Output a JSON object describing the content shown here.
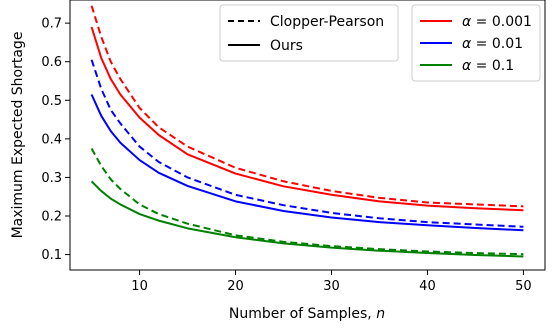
{
  "chart_data": {
    "type": "line",
    "xlabel": "Number of Samples, ",
    "xlabel_var": "n",
    "ylabel": "Maximum Expected Shortage",
    "xlim": [
      2.75,
      52.25
    ],
    "ylim": [
      0.06,
      0.76
    ],
    "xticks": [
      10,
      20,
      30,
      40,
      50
    ],
    "yticks": [
      0.1,
      0.2,
      0.3,
      0.4,
      0.5,
      0.6,
      0.7
    ],
    "grid": false,
    "x": [
      5,
      6,
      7,
      8,
      10,
      12,
      15,
      20,
      25,
      30,
      35,
      40,
      45,
      50
    ],
    "series": [
      {
        "method": "Clopper-Pearson",
        "alpha": "0.001",
        "color": "#ff0000",
        "dash": "dashed",
        "values": [
          0.745,
          0.665,
          0.6,
          0.555,
          0.48,
          0.43,
          0.38,
          0.325,
          0.29,
          0.265,
          0.247,
          0.235,
          0.23,
          0.225
        ]
      },
      {
        "method": "Ours",
        "alpha": "0.001",
        "color": "#ff0000",
        "dash": "solid",
        "values": [
          0.69,
          0.61,
          0.555,
          0.515,
          0.455,
          0.41,
          0.36,
          0.31,
          0.277,
          0.255,
          0.238,
          0.227,
          0.22,
          0.215
        ]
      },
      {
        "method": "Clopper-Pearson",
        "alpha": "0.01",
        "color": "#0000ff",
        "dash": "dashed",
        "values": [
          0.605,
          0.53,
          0.475,
          0.44,
          0.38,
          0.34,
          0.3,
          0.255,
          0.228,
          0.208,
          0.194,
          0.184,
          0.178,
          0.172
        ]
      },
      {
        "method": "Ours",
        "alpha": "0.01",
        "color": "#0000ff",
        "dash": "solid",
        "values": [
          0.515,
          0.46,
          0.42,
          0.39,
          0.345,
          0.312,
          0.278,
          0.238,
          0.213,
          0.196,
          0.184,
          0.176,
          0.169,
          0.163
        ]
      },
      {
        "method": "Clopper-Pearson",
        "alpha": "0.1",
        "color": "#008000",
        "dash": "dashed",
        "values": [
          0.375,
          0.33,
          0.295,
          0.27,
          0.23,
          0.205,
          0.18,
          0.15,
          0.133,
          0.122,
          0.114,
          0.108,
          0.104,
          0.101
        ]
      },
      {
        "method": "Ours",
        "alpha": "0.1",
        "color": "#008000",
        "dash": "solid",
        "values": [
          0.29,
          0.265,
          0.245,
          0.23,
          0.205,
          0.188,
          0.168,
          0.145,
          0.129,
          0.118,
          0.11,
          0.104,
          0.099,
          0.095
        ]
      }
    ],
    "legend_styles": {
      "placement": "top-center",
      "items": [
        {
          "label": "Clopper-Pearson",
          "dash": "dashed",
          "color": "#000000"
        },
        {
          "label": "Ours",
          "dash": "solid",
          "color": "#000000"
        }
      ]
    },
    "legend_alphas": {
      "placement": "top-right",
      "items": [
        {
          "prefix": "α",
          "label": " = 0.001",
          "color": "#ff0000"
        },
        {
          "prefix": "α",
          "label": " = 0.01",
          "color": "#0000ff"
        },
        {
          "prefix": "α",
          "label": " = 0.1",
          "color": "#008000"
        }
      ]
    }
  }
}
